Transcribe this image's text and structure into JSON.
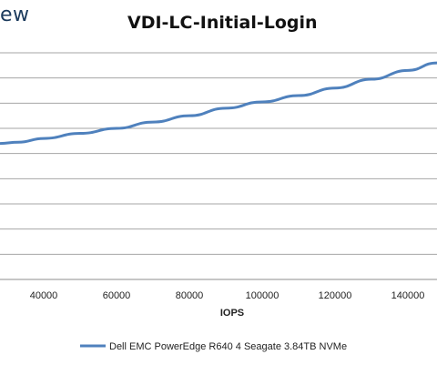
{
  "logo_text": "ew",
  "chart_data": {
    "type": "line",
    "title": "VDI-LC-Initial-Login",
    "xlabel": "IOPS",
    "ylabel": "",
    "x_ticks": [
      40000,
      60000,
      80000,
      100000,
      120000,
      140000
    ],
    "x_tick_labels": [
      "40000",
      "60000",
      "80000",
      "100000",
      "120000",
      "140000"
    ],
    "xlim": [
      28000,
      148000
    ],
    "ylim": [
      0,
      9
    ],
    "grid": true,
    "legend_position": "bottom",
    "series": [
      {
        "name": "Dell EMC PowerEdge R640 4 Seagate 3.84TB NVMe",
        "color": "#4f81bd",
        "x": [
          28000,
          33000,
          40000,
          50000,
          60000,
          70000,
          80000,
          90000,
          100000,
          110000,
          120000,
          130000,
          140000,
          148000
        ],
        "y": [
          5.4,
          5.45,
          5.6,
          5.8,
          6.0,
          6.25,
          6.5,
          6.8,
          7.05,
          7.3,
          7.6,
          7.95,
          8.3,
          8.6
        ]
      }
    ]
  }
}
